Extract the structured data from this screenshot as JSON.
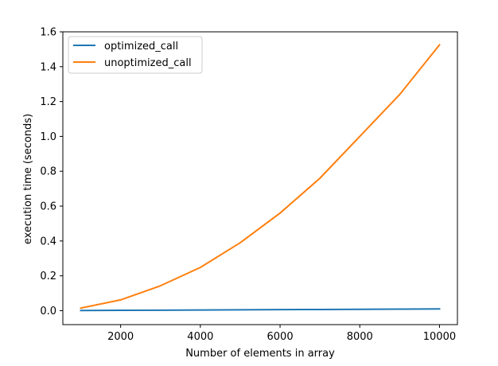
{
  "chart_data": {
    "type": "line",
    "title": "",
    "xlabel": "Number of elements in array",
    "ylabel": "execution time (seconds)",
    "xlim": [
      550,
      10450
    ],
    "ylim": [
      -0.08,
      1.6
    ],
    "x": [
      1000,
      2000,
      3000,
      4000,
      5000,
      6000,
      7000,
      8000,
      9000,
      10000
    ],
    "xticks": [
      2000,
      4000,
      6000,
      8000,
      10000
    ],
    "xtick_labels": [
      "2000",
      "4000",
      "6000",
      "8000",
      "10000"
    ],
    "yticks": [
      0.0,
      0.2,
      0.4,
      0.6,
      0.8,
      1.0,
      1.2,
      1.4,
      1.6
    ],
    "ytick_labels": [
      "0.0",
      "0.2",
      "0.4",
      "0.6",
      "0.8",
      "1.0",
      "1.2",
      "1.4",
      "1.6"
    ],
    "grid": false,
    "legend_position": "top-left",
    "series": [
      {
        "name": "optimized_call",
        "color": "#1f77b4",
        "values": [
          0.001,
          0.002,
          0.003,
          0.004,
          0.005,
          0.006,
          0.007,
          0.008,
          0.009,
          0.01
        ]
      },
      {
        "name": "unoptimized_call",
        "color": "#ff7f0e",
        "values": [
          0.015,
          0.062,
          0.143,
          0.248,
          0.39,
          0.56,
          0.76,
          1.0,
          1.24,
          1.525
        ]
      }
    ]
  }
}
